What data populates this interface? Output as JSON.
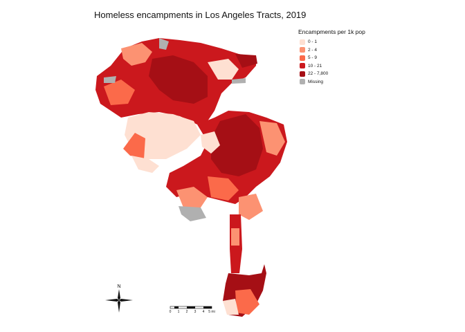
{
  "title": "Homeless encampments in Los Angeles Tracts, 2019",
  "legend": {
    "title": "Encampments per 1k pop",
    "items": [
      {
        "label": "0 - 1",
        "color": "#fee0d2"
      },
      {
        "label": "2 - 4",
        "color": "#fc9272"
      },
      {
        "label": "5 - 9",
        "color": "#fb6a4a"
      },
      {
        "label": "10 - 21",
        "color": "#cb181d"
      },
      {
        "label": "22 - 7,800",
        "color": "#a50f15"
      },
      {
        "label": "Missing",
        "color": "#b0b0b0"
      }
    ]
  },
  "north_arrow": {
    "label": "N"
  },
  "scale_bar": {
    "ticks": [
      "0",
      "1",
      "2",
      "3",
      "4",
      "5 mi"
    ]
  }
}
